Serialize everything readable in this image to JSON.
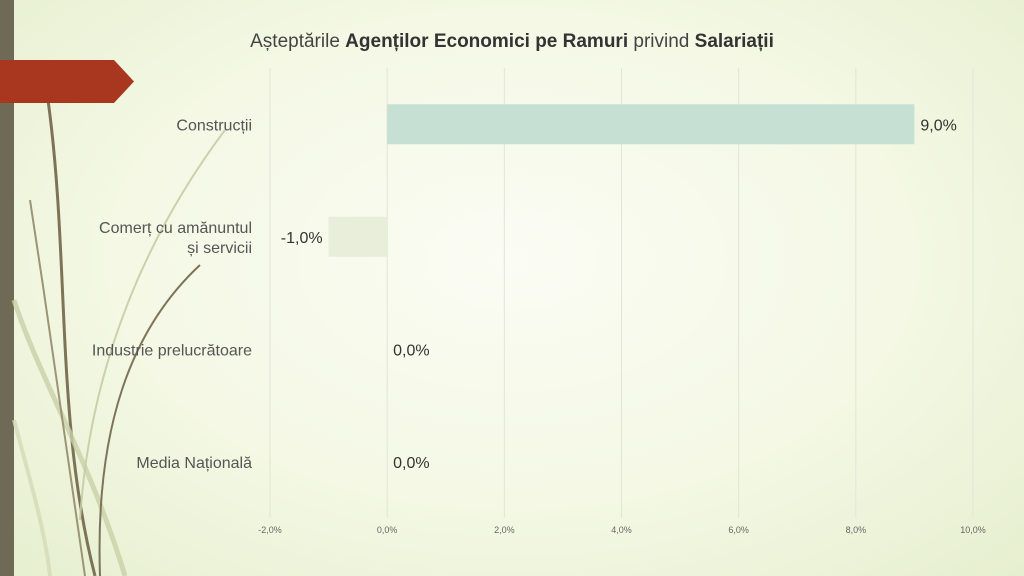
{
  "slide": {
    "title_parts": [
      {
        "text": "Așteptările ",
        "bold": false
      },
      {
        "text": "Agenților Economici pe Ramuri",
        "bold": true
      },
      {
        "text": " privind ",
        "bold": false
      },
      {
        "text": "Salariații",
        "bold": true
      }
    ],
    "colors": {
      "strip": "#6f6a55",
      "arrow": "#a9361f",
      "curves": "#7d7458"
    }
  },
  "chart_data": {
    "type": "bar",
    "orientation": "horizontal",
    "title": "Așteptările Agenților Economici pe Ramuri privind Salariații",
    "categories": [
      [
        "Construcții"
      ],
      [
        "Comerț cu amănuntul",
        "și servicii"
      ],
      [
        "Industrie prelucrătoare"
      ],
      [
        "Media Națională"
      ]
    ],
    "values": [
      9.0,
      -1.0,
      0.0,
      0.0
    ],
    "value_labels": [
      "9,0%",
      "-1,0%",
      "0,0%",
      "0,0%"
    ],
    "bar_colors": [
      "#c6e0d4",
      "#e9eedb",
      "#e9eedb",
      "#e9eedb"
    ],
    "xlim": [
      -2.0,
      10.0
    ],
    "xticks": [
      -2,
      0,
      2,
      4,
      6,
      8,
      10
    ],
    "xtick_labels": [
      "-2,0%",
      "0,0%",
      "2,0%",
      "4,0%",
      "6,0%",
      "8,0%",
      "10,0%"
    ],
    "grid": true,
    "legend": "none"
  }
}
